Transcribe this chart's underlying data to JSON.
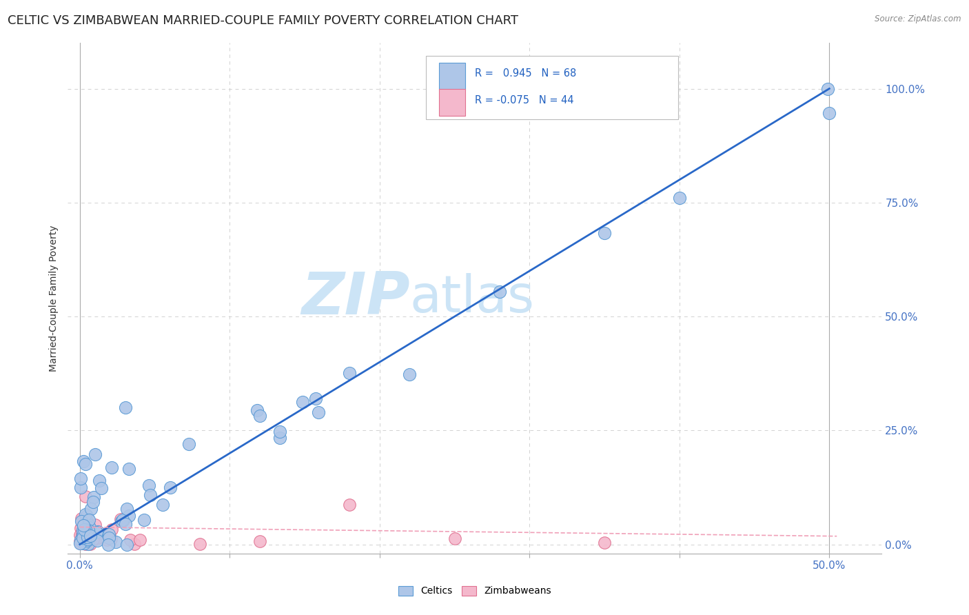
{
  "title": "CELTIC VS ZIMBABWEAN MARRIED-COUPLE FAMILY POVERTY CORRELATION CHART",
  "source": "Source: ZipAtlas.com",
  "ylabel": "Married-Couple Family Poverty",
  "xmin": -0.008,
  "xmax": 0.535,
  "ymin": -0.02,
  "ymax": 1.1,
  "x_ticks": [
    0.0,
    0.1,
    0.2,
    0.3,
    0.4,
    0.5
  ],
  "x_tick_labels": [
    "0.0%",
    "",
    "",
    "",
    "",
    "50.0%"
  ],
  "y_ticks": [
    0.0,
    0.25,
    0.5,
    0.75,
    1.0
  ],
  "y_tick_labels": [
    "0.0%",
    "25.0%",
    "50.0%",
    "75.0%",
    "100.0%"
  ],
  "grid_color": "#cccccc",
  "background_color": "#ffffff",
  "celtic_color": "#aec6e8",
  "celtic_edge_color": "#5b9bd5",
  "zimbabwe_color": "#f4b8cc",
  "zimbabwe_edge_color": "#e07090",
  "regression_celtic_color": "#2968c8",
  "regression_zimbabwe_color": "#f0a0b8",
  "watermark_zip": "ZIP",
  "watermark_atlas": "atlas",
  "watermark_color": "#cce4f6",
  "watermark_fontsize": 62,
  "legend_R_celtic": "0.945",
  "legend_N_celtic": "68",
  "legend_R_zimbabwe": "-0.075",
  "legend_N_zimbabwe": "44",
  "title_fontsize": 13,
  "axis_label_fontsize": 10,
  "tick_label_color": "#4472c4",
  "tick_label_fontsize": 11,
  "legend_text_color": "#2060c0"
}
